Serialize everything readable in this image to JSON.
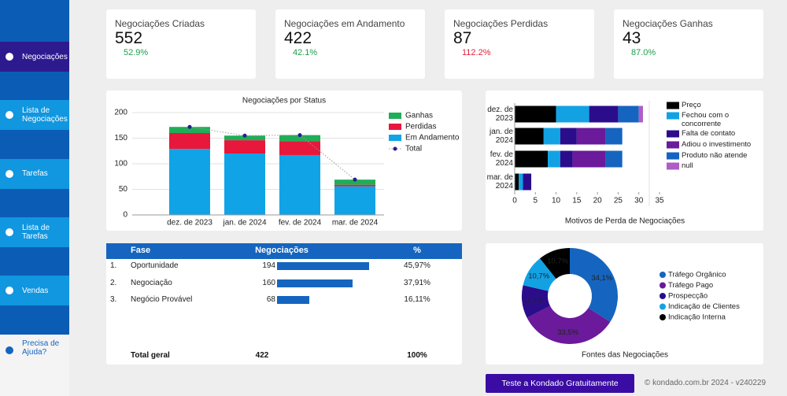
{
  "sidebar": {
    "items": [
      "Negociações",
      "Lista de Negociações",
      "Tarefas",
      "Lista de Tarefas",
      "Vendas"
    ],
    "selected": 0,
    "help": "Precisa de Ajuda?"
  },
  "kpis": [
    {
      "title": "Negociações Criadas",
      "value": 552,
      "change": "52.9%",
      "color": "#1a9f4b",
      "spark_color": "#3aa0d8"
    },
    {
      "title": "Negociações em Andamento",
      "value": 422,
      "change": "42.1%",
      "color": "#1a9f4b",
      "spark_color": "#3aa0d8"
    },
    {
      "title": "Negociações Perdidas",
      "value": 87,
      "change": "112.2%",
      "color": "#e0203c",
      "spark_color": "#e0203c"
    },
    {
      "title": "Negociações Ganhas",
      "value": 43,
      "change": "87.0%",
      "color": "#1a9f4b",
      "spark_color": "#1fae57"
    }
  ],
  "chart_data": [
    {
      "type": "bar",
      "stacked": true,
      "title": "Negociações por Status",
      "categories": [
        "dez. de 2023",
        "jan. de 2024",
        "fev. de 2024",
        "mar. de 2024"
      ],
      "series": [
        {
          "name": "Ganhas",
          "color": "#1fae57",
          "values": [
            12,
            9,
            12,
            10
          ]
        },
        {
          "name": "Perdidas",
          "color": "#e8173c",
          "values": [
            31,
            26,
            27,
            3
          ]
        },
        {
          "name": "Em Andamento",
          "color": "#10a4e6",
          "values": [
            129,
            120,
            117,
            56
          ]
        },
        {
          "name": "Total",
          "type": "line",
          "color": "#2a1b8f",
          "values": [
            172,
            155,
            156,
            69
          ]
        }
      ],
      "ylim": [
        0,
        200
      ],
      "yticks": [
        0,
        50,
        100,
        150,
        200
      ],
      "grid": true,
      "legend": "right"
    },
    {
      "type": "hbar",
      "stacked": true,
      "title": "Motivos de Perda de Negociações",
      "categories": [
        "dez. de 2023",
        "jan. de 2024",
        "fev. de 2024",
        "mar. de 2024"
      ],
      "series": [
        {
          "name": "Preço",
          "color": "#000000",
          "values": [
            10,
            7,
            8,
            1
          ]
        },
        {
          "name": "Fechou com o concorrente",
          "color": "#12a2e4",
          "values": [
            8,
            4,
            3,
            1
          ]
        },
        {
          "name": "Falta de contato",
          "color": "#2b0d8c",
          "values": [
            7,
            4,
            3,
            2
          ]
        },
        {
          "name": "Adiou o investimento",
          "color": "#6a1a9a",
          "values": [
            0,
            7,
            8,
            0
          ]
        },
        {
          "name": "Produto não atende",
          "color": "#1565c0",
          "values": [
            5,
            4,
            4,
            0
          ]
        },
        {
          "name": "null",
          "color": "#b05cc6",
          "values": [
            1,
            0,
            0,
            0
          ]
        }
      ],
      "xlim": [
        0,
        35
      ],
      "xticks": [
        0,
        5,
        10,
        15,
        20,
        25,
        30,
        35
      ],
      "legend": "right"
    },
    {
      "type": "pie",
      "donut": true,
      "title": "Fontes das Negociações",
      "categories": [
        "Tráfego Orgânico",
        "Tráfego Pago",
        "Prospecção",
        "Indicação de Clientes",
        "Indicação Interna"
      ],
      "values": [
        34.1,
        33.5,
        11.1,
        10.7,
        10.7
      ],
      "value_labels": [
        "34,1%",
        "33,5%",
        "11,1%",
        "10,7%",
        "10,7%"
      ],
      "colors": [
        "#1565c0",
        "#6a1a9a",
        "#2b0d8c",
        "#12a2e4",
        "#000000"
      ],
      "legend": "right"
    }
  ],
  "table": {
    "columns": [
      "Fase",
      "Negociações",
      "%"
    ],
    "rows": [
      [
        "1.",
        "Oportunidade",
        194,
        "45,97%"
      ],
      [
        "2.",
        "Negociação",
        160,
        "37,91%"
      ],
      [
        "3.",
        "Negócio Provável",
        68,
        "16,11%"
      ]
    ],
    "total": [
      "Total geral",
      422,
      "100%"
    ]
  },
  "footer": {
    "button": "Teste a Kondado Gratuitamente",
    "copyright": "© kondado.com.br 2024 - v240229"
  }
}
